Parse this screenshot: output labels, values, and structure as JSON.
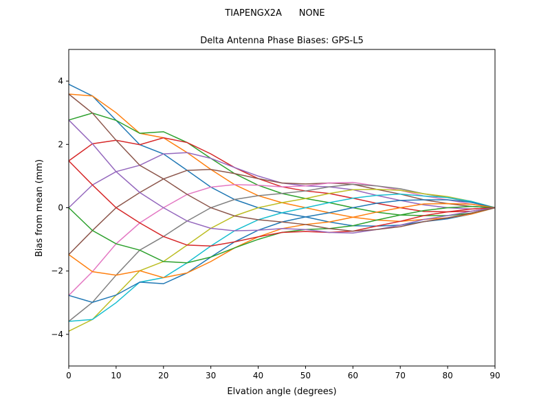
{
  "chart_data": {
    "type": "line",
    "suptitle": "TIAPENGX2A      NONE",
    "title": "Delta Antenna Phase Biases: GPS-L5",
    "xlabel": "Elvation angle (degrees)",
    "ylabel": "Bias from mean (mm)",
    "x": [
      0,
      5,
      10,
      15,
      20,
      25,
      30,
      35,
      40,
      45,
      50,
      55,
      60,
      65,
      70,
      75,
      80,
      85,
      90
    ],
    "xlim": [
      0,
      90
    ],
    "xticks": [
      0,
      10,
      20,
      30,
      40,
      50,
      60,
      70,
      80,
      90
    ],
    "ylim": [
      -5,
      5
    ],
    "yticks": [
      {
        "value": -4,
        "label": "−4"
      },
      {
        "value": -2,
        "label": "−2"
      },
      0,
      2,
      4
    ],
    "series": [
      {
        "color": "#1f77b4",
        "values": [
          3.9,
          3.53,
          2.76,
          1.99,
          1.7,
          1.18,
          0.65,
          0.26,
          0,
          -0.16,
          -0.29,
          -0.45,
          -0.57,
          -0.58,
          -0.55,
          -0.44,
          -0.35,
          -0.2,
          0
        ]
      },
      {
        "color": "#ff7f0e",
        "values": [
          3.59,
          3.53,
          3.0,
          2.35,
          2.21,
          1.74,
          1.21,
          0.73,
          0.38,
          0.16,
          0,
          -0.16,
          -0.3,
          -0.39,
          -0.43,
          -0.37,
          -0.32,
          -0.2,
          0
        ]
      },
      {
        "color": "#2ca02c",
        "values": [
          2.77,
          2.99,
          2.76,
          2.35,
          2.4,
          2.06,
          1.56,
          1.08,
          0.71,
          0.45,
          0.29,
          0.16,
          0,
          -0.14,
          -0.23,
          -0.25,
          -0.25,
          -0.17,
          0
        ]
      },
      {
        "color": "#d62728",
        "values": [
          1.48,
          2.02,
          2.13,
          1.99,
          2.21,
          2.06,
          1.7,
          1.27,
          0.92,
          0.66,
          0.53,
          0.45,
          0.3,
          0.14,
          0,
          -0.12,
          -0.13,
          -0.11,
          0
        ]
      },
      {
        "color": "#9467bd",
        "values": [
          0,
          0.72,
          1.14,
          1.34,
          1.7,
          1.74,
          1.56,
          1.27,
          1.0,
          0.78,
          0.69,
          0.66,
          0.57,
          0.39,
          0.23,
          0.09,
          0,
          -0.04,
          0
        ]
      },
      {
        "color": "#8c564b",
        "values": [
          -1.48,
          -0.72,
          0,
          0.48,
          0.91,
          1.18,
          1.21,
          1.08,
          0.92,
          0.78,
          0.75,
          0.78,
          0.74,
          0.58,
          0.43,
          0.25,
          0.13,
          0.04,
          0
        ]
      },
      {
        "color": "#e377c2",
        "values": [
          -2.77,
          -2.02,
          -1.14,
          -0.48,
          0,
          0.42,
          0.65,
          0.73,
          0.71,
          0.66,
          0.69,
          0.78,
          0.8,
          0.69,
          0.55,
          0.37,
          0.25,
          0.11,
          0
        ]
      },
      {
        "color": "#7f7f7f",
        "values": [
          -3.59,
          -2.99,
          -2.13,
          -1.34,
          -0.91,
          -0.42,
          0,
          0.26,
          0.38,
          0.45,
          0.53,
          0.66,
          0.74,
          0.69,
          0.6,
          0.44,
          0.32,
          0.17,
          0
        ]
      },
      {
        "color": "#bcbd22",
        "values": [
          -3.9,
          -3.53,
          -2.76,
          -1.99,
          -1.7,
          -1.18,
          -0.65,
          -0.26,
          0,
          0.16,
          0.29,
          0.45,
          0.57,
          0.58,
          0.55,
          0.44,
          0.35,
          0.2,
          0
        ]
      },
      {
        "color": "#17becf",
        "values": [
          -3.59,
          -3.53,
          -3.0,
          -2.35,
          -2.21,
          -1.74,
          -1.21,
          -0.73,
          -0.38,
          -0.16,
          0,
          0.16,
          0.3,
          0.39,
          0.43,
          0.37,
          0.32,
          0.2,
          0
        ]
      },
      {
        "color": "#1f77b4",
        "values": [
          -2.77,
          -2.99,
          -2.76,
          -2.35,
          -2.4,
          -2.06,
          -1.56,
          -1.08,
          -0.71,
          -0.45,
          -0.29,
          -0.16,
          0,
          0.14,
          0.23,
          0.25,
          0.25,
          0.17,
          0
        ]
      },
      {
        "color": "#ff7f0e",
        "values": [
          -1.48,
          -2.02,
          -2.13,
          -1.99,
          -2.21,
          -2.06,
          -1.7,
          -1.27,
          -0.92,
          -0.66,
          -0.53,
          -0.45,
          -0.3,
          -0.14,
          0,
          0.12,
          0.13,
          0.11,
          0
        ]
      },
      {
        "color": "#2ca02c",
        "values": [
          0,
          -0.72,
          -1.14,
          -1.34,
          -1.7,
          -1.74,
          -1.56,
          -1.27,
          -1.0,
          -0.78,
          -0.69,
          -0.66,
          -0.57,
          -0.39,
          -0.23,
          -0.09,
          0,
          0.04,
          0
        ]
      },
      {
        "color": "#d62728",
        "values": [
          1.48,
          0.72,
          0,
          -0.48,
          -0.91,
          -1.18,
          -1.21,
          -1.08,
          -0.92,
          -0.78,
          -0.75,
          -0.78,
          -0.74,
          -0.58,
          -0.43,
          -0.25,
          -0.13,
          -0.04,
          0
        ]
      },
      {
        "color": "#9467bd",
        "values": [
          2.77,
          2.02,
          1.14,
          0.48,
          0,
          -0.42,
          -0.65,
          -0.73,
          -0.71,
          -0.66,
          -0.69,
          -0.78,
          -0.8,
          -0.69,
          -0.55,
          -0.37,
          -0.25,
          -0.11,
          0
        ]
      },
      {
        "color": "#8c564b",
        "values": [
          3.59,
          2.99,
          2.13,
          1.34,
          0.91,
          0.42,
          0,
          -0.26,
          -0.38,
          -0.45,
          -0.53,
          -0.66,
          -0.74,
          -0.69,
          -0.6,
          -0.44,
          -0.32,
          -0.17,
          0
        ]
      }
    ]
  }
}
